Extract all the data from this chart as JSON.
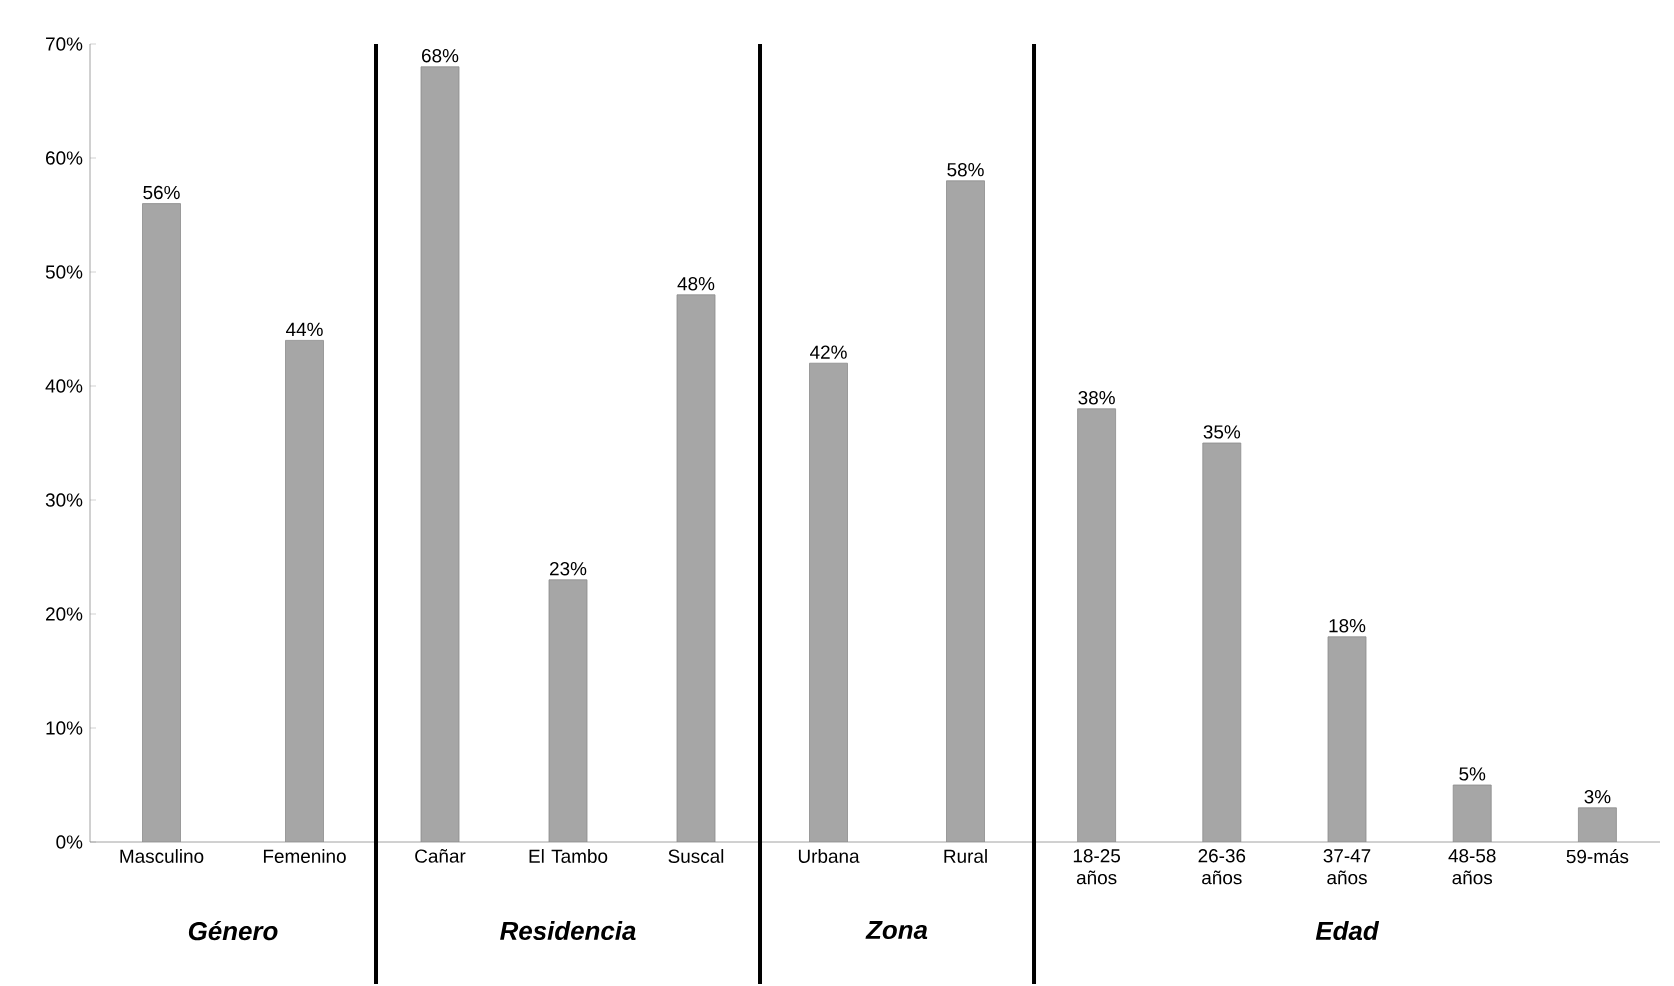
{
  "chart_data": [
    {
      "type": "bar",
      "xlabel": "Género",
      "categories": [
        "Masculino",
        "Femenino"
      ],
      "values": [
        56,
        44
      ],
      "value_labels": [
        "56%",
        "44%"
      ],
      "color": "#a6a6a6",
      "ylim": [
        0,
        70
      ],
      "yticks": [
        {
          "value": 0,
          "label": "0%"
        },
        {
          "value": 10,
          "label": "10%"
        },
        {
          "value": 20,
          "label": "20%"
        },
        {
          "value": 30,
          "label": "30%"
        },
        {
          "value": 40,
          "label": "40%"
        },
        {
          "value": 50,
          "label": "50%"
        },
        {
          "value": 60,
          "label": "60%"
        },
        {
          "value": 70,
          "label": "70%"
        }
      ]
    },
    {
      "type": "bar",
      "xlabel": "Residencia",
      "categories": [
        "Cañar",
        "El Tambo",
        "Suscal"
      ],
      "values": [
        68,
        23,
        48
      ],
      "value_labels": [
        "68%",
        "23%",
        "48%"
      ],
      "color": "#a6a6a6",
      "ylim": [
        0,
        70
      ],
      "tick_labels": "x"
    },
    {
      "type": "bar",
      "xlabel": "Zona",
      "categories": [
        "Urbana",
        "Rural"
      ],
      "values": [
        42,
        58
      ],
      "value_labels": [
        "42%",
        "58%"
      ],
      "color": "#a6a6a6",
      "ylim": [
        0,
        70
      ],
      "tick_labels": "x"
    },
    {
      "type": "bar",
      "xlabel": "Edad",
      "categories": [
        "18-25 años",
        "26-36 años",
        "37-47 años",
        "48-58 años",
        "59-más"
      ],
      "values": [
        38,
        35,
        18,
        5,
        3
      ],
      "value_labels": [
        "38%",
        "35%",
        "18%",
        "5%",
        "3%"
      ],
      "color": "#a6a6a6",
      "ylim": [
        0,
        70
      ],
      "tick_labels": "x"
    }
  ]
}
